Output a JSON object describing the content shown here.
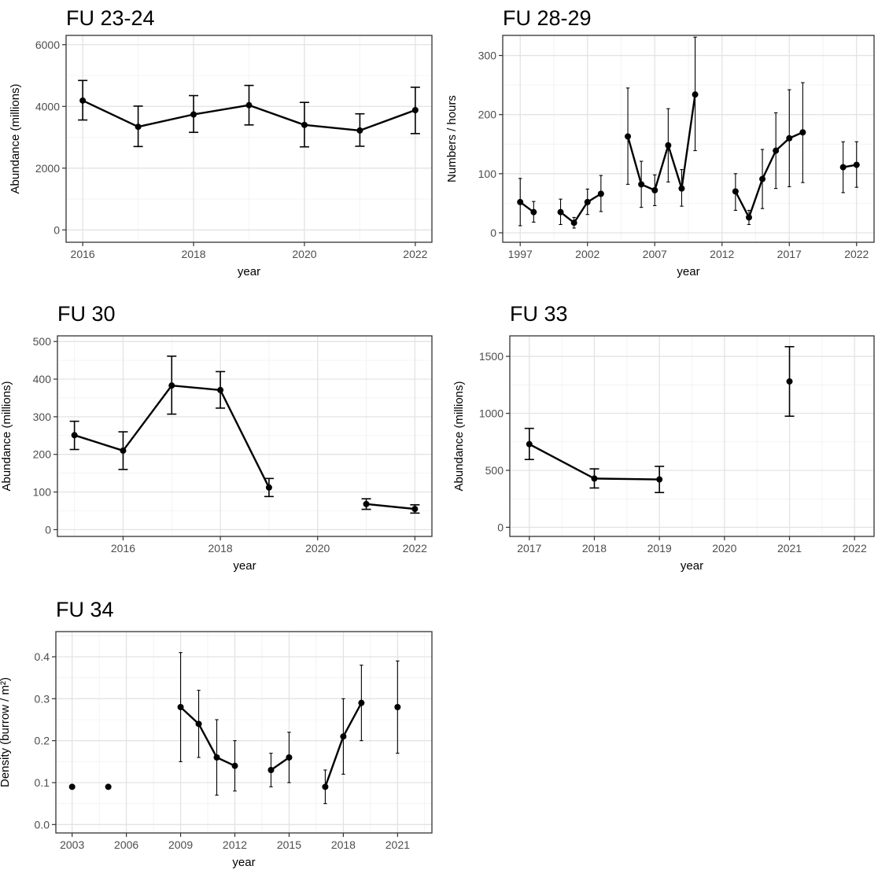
{
  "chart_data": [
    {
      "type": "line",
      "title": "FU 23-24",
      "xlabel": "year",
      "ylabel": "Abundance (millions)",
      "xlim": [
        2015.7,
        2022.3
      ],
      "ylim": [
        -400,
        6300
      ],
      "xticks": [
        2016,
        2018,
        2020,
        2022
      ],
      "yticks": [
        0,
        2000,
        4000,
        6000
      ],
      "grid": true,
      "errorbar_caps": true,
      "series": [
        {
          "points": [
            {
              "x": 2016,
              "y": 4190,
              "lo": 3560,
              "hi": 4840
            },
            {
              "x": 2017,
              "y": 3340,
              "lo": 2700,
              "hi": 4010
            },
            {
              "x": 2018,
              "y": 3740,
              "lo": 3160,
              "hi": 4350
            },
            {
              "x": 2019,
              "y": 4040,
              "lo": 3400,
              "hi": 4680
            },
            {
              "x": 2020,
              "y": 3400,
              "lo": 2690,
              "hi": 4130
            },
            {
              "x": 2021,
              "y": 3220,
              "lo": 2710,
              "hi": 3760
            },
            {
              "x": 2022,
              "y": 3880,
              "lo": 3120,
              "hi": 4620
            }
          ]
        }
      ]
    },
    {
      "type": "line",
      "title": "FU 28-29",
      "xlabel": "year",
      "ylabel": "Numbers / hours",
      "xlim": [
        1995.7,
        2023.3
      ],
      "ylim": [
        -16,
        334
      ],
      "xticks": [
        1997,
        2002,
        2007,
        2012,
        2017,
        2022
      ],
      "yticks": [
        0,
        100,
        200,
        300
      ],
      "grid": true,
      "errorbar_caps": false,
      "series": [
        {
          "points": [
            {
              "x": 1997,
              "y": 52,
              "lo": 12,
              "hi": 92
            },
            {
              "x": 1998,
              "y": 35,
              "lo": 18,
              "hi": 53
            }
          ]
        },
        {
          "points": [
            {
              "x": 2000,
              "y": 35,
              "lo": 14,
              "hi": 57
            },
            {
              "x": 2001,
              "y": 17,
              "lo": 8,
              "hi": 26
            },
            {
              "x": 2002,
              "y": 52,
              "lo": 31,
              "hi": 74
            },
            {
              "x": 2003,
              "y": 66,
              "lo": 36,
              "hi": 97
            }
          ]
        },
        {
          "points": [
            {
              "x": 2005,
              "y": 163,
              "lo": 82,
              "hi": 245
            },
            {
              "x": 2006,
              "y": 82,
              "lo": 43,
              "hi": 121
            },
            {
              "x": 2007,
              "y": 72,
              "lo": 46,
              "hi": 98
            },
            {
              "x": 2008,
              "y": 148,
              "lo": 86,
              "hi": 210
            },
            {
              "x": 2009,
              "y": 75,
              "lo": 45,
              "hi": 107
            },
            {
              "x": 2010,
              "y": 234,
              "lo": 139,
              "hi": 331
            }
          ]
        },
        {
          "points": [
            {
              "x": 2013,
              "y": 70,
              "lo": 38,
              "hi": 100
            },
            {
              "x": 2014,
              "y": 26,
              "lo": 14,
              "hi": 38
            },
            {
              "x": 2015,
              "y": 91,
              "lo": 41,
              "hi": 141
            },
            {
              "x": 2016,
              "y": 139,
              "lo": 75,
              "hi": 203
            },
            {
              "x": 2017,
              "y": 160,
              "lo": 78,
              "hi": 242
            },
            {
              "x": 2018,
              "y": 170,
              "lo": 85,
              "hi": 254
            }
          ]
        },
        {
          "points": [
            {
              "x": 2021,
              "y": 111,
              "lo": 68,
              "hi": 154
            },
            {
              "x": 2022,
              "y": 115,
              "lo": 77,
              "hi": 154
            }
          ]
        }
      ]
    },
    {
      "type": "line",
      "title": "FU 30",
      "xlabel": "year",
      "ylabel": "Abundance (millions)",
      "xlim": [
        2014.65,
        2022.35
      ],
      "ylim": [
        -18,
        515
      ],
      "xticks": [
        2016,
        2018,
        2020,
        2022
      ],
      "yticks": [
        0,
        100,
        200,
        300,
        400,
        500
      ],
      "grid": true,
      "errorbar_caps": true,
      "series": [
        {
          "points": [
            {
              "x": 2015,
              "y": 251,
              "lo": 213,
              "hi": 288
            },
            {
              "x": 2016,
              "y": 210,
              "lo": 160,
              "hi": 260
            },
            {
              "x": 2017,
              "y": 383,
              "lo": 307,
              "hi": 461
            },
            {
              "x": 2018,
              "y": 371,
              "lo": 323,
              "hi": 420
            },
            {
              "x": 2019,
              "y": 112,
              "lo": 88,
              "hi": 136
            }
          ]
        },
        {
          "points": [
            {
              "x": 2021,
              "y": 68,
              "lo": 54,
              "hi": 82
            },
            {
              "x": 2022,
              "y": 55,
              "lo": 44,
              "hi": 66
            }
          ]
        }
      ]
    },
    {
      "type": "line",
      "title": "FU 33",
      "xlabel": "year",
      "ylabel": "Abundance (millions)",
      "xlim": [
        2016.7,
        2022.3
      ],
      "ylim": [
        -80,
        1680
      ],
      "xticks": [
        2017,
        2018,
        2019,
        2020,
        2021,
        2022
      ],
      "yticks": [
        0,
        500,
        1000,
        1500
      ],
      "grid": true,
      "errorbar_caps": true,
      "series": [
        {
          "points": [
            {
              "x": 2017,
              "y": 730,
              "lo": 595,
              "hi": 868
            },
            {
              "x": 2018,
              "y": 428,
              "lo": 345,
              "hi": 513
            },
            {
              "x": 2019,
              "y": 420,
              "lo": 305,
              "hi": 535
            }
          ]
        },
        {
          "points": [
            {
              "x": 2021,
              "y": 1280,
              "lo": 975,
              "hi": 1585
            }
          ]
        }
      ]
    },
    {
      "type": "line",
      "title": "FU 34",
      "xlabel": "year",
      "ylabel": "Density (burrow / m²)",
      "xlim": [
        2002.1,
        2022.9
      ],
      "ylim": [
        -0.02,
        0.46
      ],
      "xticks": [
        2003,
        2006,
        2009,
        2012,
        2015,
        2018,
        2021
      ],
      "yticks": [
        0.0,
        0.1,
        0.2,
        0.3,
        0.4
      ],
      "grid": true,
      "errorbar_caps": false,
      "series": [
        {
          "points": [
            {
              "x": 2003,
              "y": 0.09
            }
          ]
        },
        {
          "points": [
            {
              "x": 2005,
              "y": 0.09
            }
          ]
        },
        {
          "points": [
            {
              "x": 2009,
              "y": 0.28,
              "lo": 0.15,
              "hi": 0.41
            },
            {
              "x": 2010,
              "y": 0.24,
              "lo": 0.16,
              "hi": 0.32
            },
            {
              "x": 2011,
              "y": 0.16,
              "lo": 0.07,
              "hi": 0.25
            },
            {
              "x": 2012,
              "y": 0.14,
              "lo": 0.08,
              "hi": 0.2
            }
          ]
        },
        {
          "points": [
            {
              "x": 2014,
              "y": 0.13,
              "lo": 0.09,
              "hi": 0.17
            },
            {
              "x": 2015,
              "y": 0.16,
              "lo": 0.1,
              "hi": 0.22
            }
          ]
        },
        {
          "points": [
            {
              "x": 2017,
              "y": 0.09,
              "lo": 0.05,
              "hi": 0.13
            },
            {
              "x": 2018,
              "y": 0.21,
              "lo": 0.12,
              "hi": 0.3
            },
            {
              "x": 2019,
              "y": 0.29,
              "lo": 0.2,
              "hi": 0.38
            }
          ]
        },
        {
          "points": [
            {
              "x": 2021,
              "y": 0.28,
              "lo": 0.17,
              "hi": 0.39
            }
          ]
        }
      ]
    }
  ]
}
